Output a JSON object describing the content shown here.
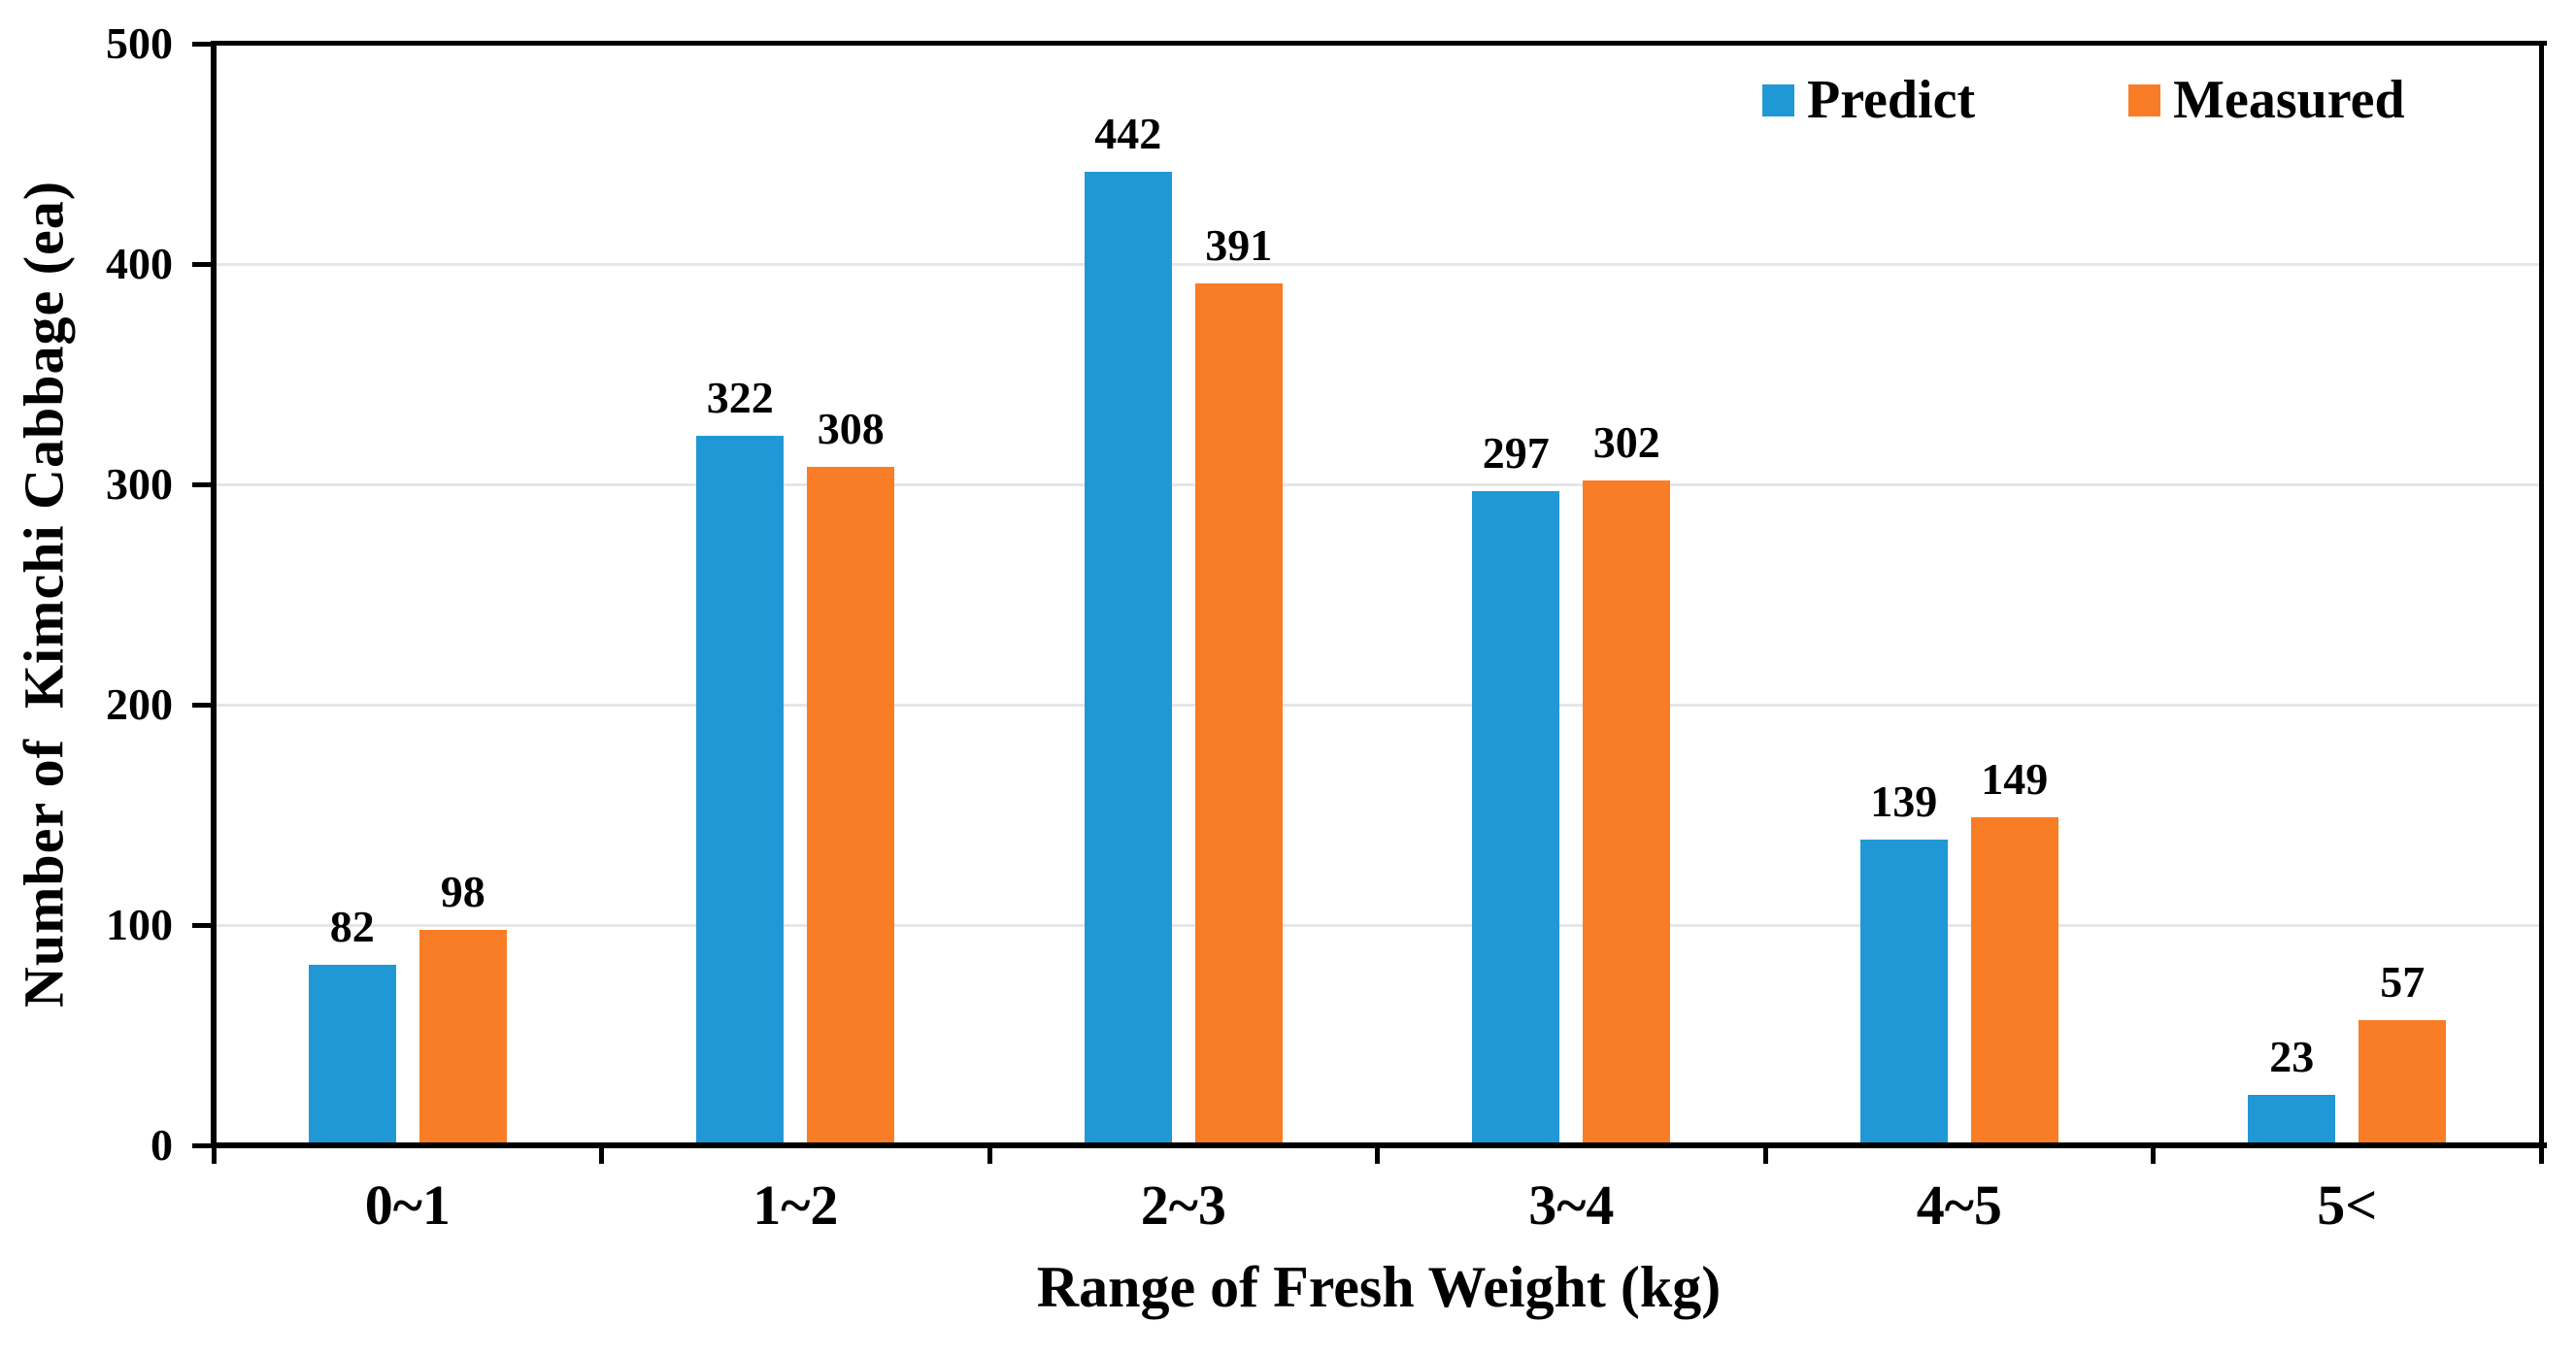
{
  "chart_data": {
    "type": "bar",
    "title": "",
    "categories": [
      "0~1",
      "1~2",
      "2~3",
      "3~4",
      "4~5",
      "5<"
    ],
    "series": [
      {
        "name": "Predict",
        "color": "#2198D6",
        "values": [
          82,
          322,
          442,
          297,
          139,
          23
        ]
      },
      {
        "name": "Measured",
        "color": "#F97D26",
        "values": [
          98,
          308,
          391,
          302,
          149,
          57
        ]
      }
    ],
    "xlabel": "Range of Fresh Weight (kg)",
    "ylabel": "Number of  Kimchi Cabbage (ea)",
    "ylim": [
      0,
      500
    ],
    "yticks": [
      0,
      100,
      200,
      300,
      400,
      500
    ],
    "grid": true,
    "grid_color": "#E6E6E6",
    "axis_color": "#000000",
    "legend_position": "top-right",
    "value_labels_shown": true
  }
}
